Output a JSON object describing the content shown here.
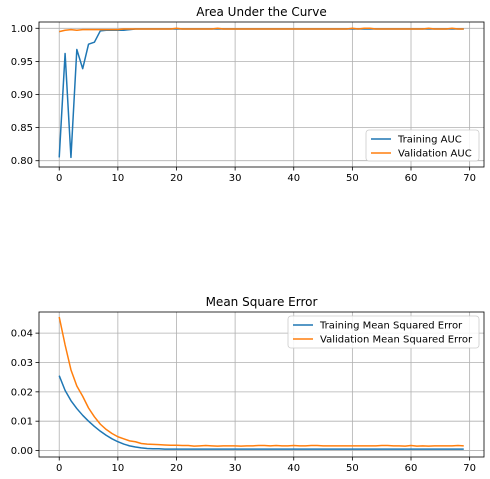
{
  "chart_data": [
    {
      "type": "line",
      "title": "Area Under the Curve",
      "xlabel": "",
      "ylabel": "",
      "xlim": [
        -3.45,
        72.45
      ],
      "ylim": [
        0.7905,
        1.0095
      ],
      "xticks": [
        0,
        10,
        20,
        30,
        40,
        50,
        60,
        70
      ],
      "xtick_labels": [
        "0",
        "10",
        "20",
        "30",
        "40",
        "50",
        "60",
        "70"
      ],
      "yticks": [
        0.8,
        0.85,
        0.9,
        0.95,
        1.0
      ],
      "ytick_labels": [
        "0.80",
        "0.85",
        "0.90",
        "0.95",
        "1.00"
      ],
      "grid": true,
      "legend_position": "lower right",
      "x": [
        0,
        1,
        2,
        3,
        4,
        5,
        6,
        7,
        8,
        9,
        10,
        11,
        12,
        13,
        14,
        15,
        16,
        17,
        18,
        19,
        20,
        21,
        22,
        23,
        24,
        25,
        26,
        27,
        28,
        29,
        30,
        31,
        32,
        33,
        34,
        35,
        36,
        37,
        38,
        39,
        40,
        41,
        42,
        43,
        44,
        45,
        46,
        47,
        48,
        49,
        50,
        51,
        52,
        53,
        54,
        55,
        56,
        57,
        58,
        59,
        60,
        61,
        62,
        63,
        64,
        65,
        66,
        67,
        68,
        69
      ],
      "series": [
        {
          "name": "Training AUC",
          "color": "#1f77b4",
          "values": [
            0.805,
            0.962,
            0.805,
            0.968,
            0.939,
            0.976,
            0.979,
            0.996,
            0.997,
            0.997,
            0.997,
            0.997,
            0.998,
            0.999,
            0.999,
            0.999,
            0.999,
            0.999,
            0.999,
            0.999,
            0.999,
            0.999,
            0.999,
            0.999,
            0.999,
            0.999,
            0.999,
            0.999,
            0.999,
            0.999,
            0.999,
            0.999,
            0.999,
            0.999,
            0.999,
            0.999,
            0.999,
            0.999,
            0.999,
            0.999,
            0.999,
            0.999,
            0.999,
            0.999,
            0.999,
            0.999,
            0.999,
            0.999,
            0.999,
            0.999,
            0.999,
            0.999,
            0.999,
            0.999,
            0.999,
            0.999,
            0.999,
            0.999,
            0.999,
            0.999,
            0.999,
            0.999,
            0.999,
            0.999,
            0.999,
            0.999,
            0.999,
            0.999,
            0.999,
            0.999
          ]
        },
        {
          "name": "Validation AUC",
          "color": "#ff7f0e",
          "values": [
            0.995,
            0.997,
            0.998,
            0.997,
            0.998,
            0.998,
            0.998,
            0.998,
            0.998,
            0.998,
            0.998,
            0.999,
            0.999,
            0.999,
            0.999,
            0.999,
            0.999,
            0.999,
            0.999,
            0.999,
            1.0,
            0.999,
            0.999,
            0.999,
            0.999,
            0.999,
            0.999,
            1.0,
            0.999,
            0.999,
            0.999,
            0.999,
            0.999,
            0.999,
            0.999,
            0.999,
            0.999,
            0.999,
            0.999,
            0.999,
            0.999,
            0.999,
            0.999,
            0.999,
            0.999,
            0.999,
            0.999,
            0.999,
            0.999,
            0.999,
            1.0,
            0.999,
            1.0,
            1.0,
            0.999,
            0.999,
            0.999,
            0.999,
            0.999,
            0.999,
            0.999,
            0.999,
            0.999,
            1.0,
            0.999,
            0.999,
            0.999,
            1.0,
            0.999,
            0.999
          ]
        }
      ]
    },
    {
      "type": "line",
      "title": "Mean Square Error",
      "xlabel": "",
      "ylabel": "",
      "xlim": [
        -3.45,
        72.45
      ],
      "ylim": [
        -0.0022,
        0.0472
      ],
      "xticks": [
        0,
        10,
        20,
        30,
        40,
        50,
        60,
        70
      ],
      "xtick_labels": [
        "0",
        "10",
        "20",
        "30",
        "40",
        "50",
        "60",
        "70"
      ],
      "yticks": [
        0.0,
        0.01,
        0.02,
        0.03,
        0.04
      ],
      "ytick_labels": [
        "0.00",
        "0.01",
        "0.02",
        "0.03",
        "0.04"
      ],
      "grid": true,
      "legend_position": "upper right",
      "x": [
        0,
        1,
        2,
        3,
        4,
        5,
        6,
        7,
        8,
        9,
        10,
        11,
        12,
        13,
        14,
        15,
        16,
        17,
        18,
        19,
        20,
        21,
        22,
        23,
        24,
        25,
        26,
        27,
        28,
        29,
        30,
        31,
        32,
        33,
        34,
        35,
        36,
        37,
        38,
        39,
        40,
        41,
        42,
        43,
        44,
        45,
        46,
        47,
        48,
        49,
        50,
        51,
        52,
        53,
        54,
        55,
        56,
        57,
        58,
        59,
        60,
        61,
        62,
        63,
        64,
        65,
        66,
        67,
        68,
        69
      ],
      "series": [
        {
          "name": "Training Mean Squared Error",
          "color": "#1f77b4",
          "values": [
            0.0255,
            0.0205,
            0.017,
            0.0143,
            0.012,
            0.01,
            0.0082,
            0.0066,
            0.0052,
            0.004,
            0.003,
            0.0022,
            0.0016,
            0.0012,
            0.0009,
            0.0007,
            0.0006,
            0.0006,
            0.0005,
            0.0005,
            0.0005,
            0.0005,
            0.0005,
            0.0005,
            0.0005,
            0.0005,
            0.0005,
            0.0005,
            0.0005,
            0.0005,
            0.0005,
            0.0005,
            0.0005,
            0.0005,
            0.0005,
            0.0005,
            0.0005,
            0.0005,
            0.0005,
            0.0005,
            0.0005,
            0.0005,
            0.0005,
            0.0005,
            0.0005,
            0.0005,
            0.0005,
            0.0005,
            0.0005,
            0.0005,
            0.0005,
            0.0005,
            0.0005,
            0.0005,
            0.0005,
            0.0005,
            0.0005,
            0.0005,
            0.0005,
            0.0005,
            0.0005,
            0.0005,
            0.0005,
            0.0005,
            0.0005,
            0.0005,
            0.0005,
            0.0005,
            0.0005,
            0.0005
          ]
        },
        {
          "name": "Validation Mean Squared Error",
          "color": "#ff7f0e",
          "values": [
            0.0455,
            0.036,
            0.0275,
            0.022,
            0.0185,
            0.0145,
            0.0115,
            0.009,
            0.0072,
            0.0058,
            0.0047,
            0.004,
            0.0033,
            0.003,
            0.0024,
            0.0022,
            0.0021,
            0.002,
            0.0019,
            0.0018,
            0.0018,
            0.0017,
            0.0017,
            0.0015,
            0.0016,
            0.0017,
            0.0016,
            0.0015,
            0.0016,
            0.0016,
            0.0016,
            0.0015,
            0.0016,
            0.0016,
            0.0017,
            0.0017,
            0.0016,
            0.0017,
            0.0016,
            0.0016,
            0.0017,
            0.0016,
            0.0016,
            0.0017,
            0.0017,
            0.0016,
            0.0016,
            0.0016,
            0.0016,
            0.0016,
            0.0016,
            0.0016,
            0.0016,
            0.0016,
            0.0016,
            0.0017,
            0.0017,
            0.0016,
            0.0016,
            0.0015,
            0.0017,
            0.0015,
            0.0016,
            0.0015,
            0.0016,
            0.0016,
            0.0016,
            0.0016,
            0.0017,
            0.0016
          ]
        }
      ]
    }
  ]
}
